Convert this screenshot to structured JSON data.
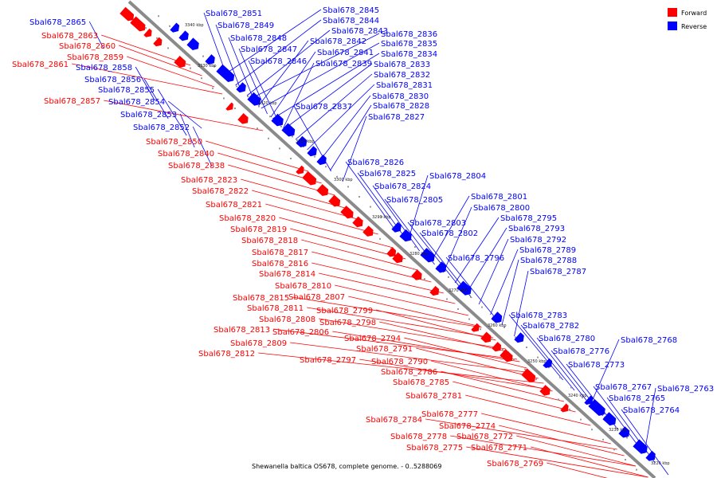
{
  "caption": "Shewanella baltica OS678, complete genome. - 0..5288069",
  "legend": [
    {
      "label": "Forward",
      "color": "#ff0000"
    },
    {
      "label": "Reverse",
      "color": "#0000ff"
    }
  ],
  "colors": {
    "forward": "#ff0000",
    "reverse": "#0000ff",
    "axis": "#8a8a8a"
  },
  "ticks": [
    "3340 kbp",
    "3330 kbp",
    "3320 kbp",
    "3310 kbp",
    "3300 kbp",
    "3290 kbp",
    "3280 kbp",
    "3270 kbp",
    "3260 kbp",
    "3250 kbp",
    "3240 kbp",
    "3230 kbp",
    "3220 kbp"
  ],
  "forward_labels": [
    "Sbal678_2863",
    "Sbal678_2860",
    "Sbal678_2859",
    "Sbal678_2861",
    "Sbal678_2857",
    "Sbal678_2850",
    "Sbal678_2840",
    "Sbal678_2838",
    "Sbal678_2823",
    "Sbal678_2822",
    "Sbal678_2821",
    "Sbal678_2820",
    "Sbal678_2819",
    "Sbal678_2818",
    "Sbal678_2817",
    "Sbal678_2816",
    "Sbal678_2814",
    "Sbal678_2810",
    "Sbal678_2815",
    "Sbal678_2807",
    "Sbal678_2811",
    "Sbal678_2799",
    "Sbal678_2808",
    "Sbal678_2798",
    "Sbal678_2813",
    "Sbal678_2806",
    "Sbal678_2809",
    "Sbal678_2812",
    "Sbal678_2794",
    "Sbal678_2791",
    "Sbal678_2797",
    "Sbal678_2790",
    "Sbal678_2786",
    "Sbal678_2785",
    "Sbal678_2781",
    "Sbal678_2777",
    "Sbal678_2784",
    "Sbal678_2774",
    "Sbal678_2778",
    "Sbal678_2772",
    "Sbal678_2775",
    "Sbal678_2771",
    "Sbal678_2769"
  ],
  "reverse_labels": [
    "Sbal678_2865",
    "Sbal678_2858",
    "Sbal678_2856",
    "Sbal678_2855",
    "Sbal678_2854",
    "Sbal678_2853",
    "Sbal678_2852",
    "Sbal678_2851",
    "Sbal678_2849",
    "Sbal678_2848",
    "Sbal678_2847",
    "Sbal678_2846",
    "Sbal678_2845",
    "Sbal678_2844",
    "Sbal678_2843",
    "Sbal678_2842",
    "Sbal678_2841",
    "Sbal678_2839",
    "Sbal678_2837",
    "Sbal678_2836",
    "Sbal678_2835",
    "Sbal678_2834",
    "Sbal678_2833",
    "Sbal678_2832",
    "Sbal678_2831",
    "Sbal678_2830",
    "Sbal678_2828",
    "Sbal678_2827",
    "Sbal678_2826",
    "Sbal678_2825",
    "Sbal678_2824",
    "Sbal678_2805",
    "Sbal678_2804",
    "Sbal678_2803",
    "Sbal678_2802",
    "Sbal678_2801",
    "Sbal678_2800",
    "Sbal678_2796",
    "Sbal678_2795",
    "Sbal678_2793",
    "Sbal678_2792",
    "Sbal678_2789",
    "Sbal678_2788",
    "Sbal678_2787",
    "Sbal678_2783",
    "Sbal678_2782",
    "Sbal678_2780",
    "Sbal678_2776",
    "Sbal678_2773",
    "Sbal678_2768",
    "Sbal678_2767",
    "Sbal678_2765",
    "Sbal678_2764",
    "Sbal678_2763"
  ]
}
